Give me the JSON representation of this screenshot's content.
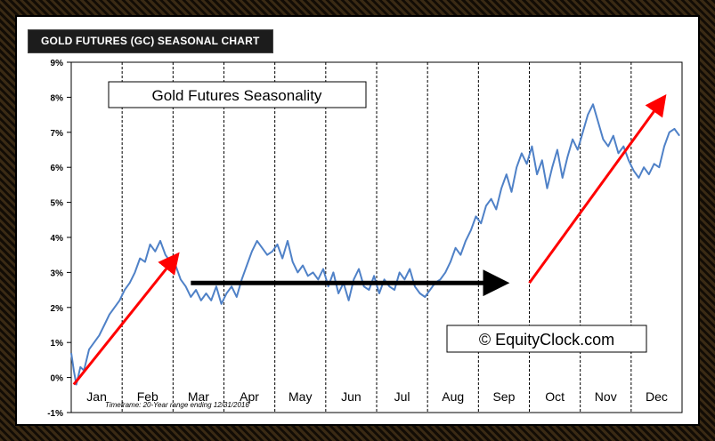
{
  "header": {
    "title": "GOLD FUTURES (GC) SEASONAL CHART"
  },
  "chart_data": {
    "type": "line",
    "title": "Gold Futures Seasonality",
    "watermark": "© EquityClock.com",
    "footnote": "Timeframe:  20-Year range ending 12/31/2016",
    "ylim": [
      -1,
      9
    ],
    "yticks": [
      "-1%",
      "0%",
      "1%",
      "2%",
      "3%",
      "4%",
      "5%",
      "6%",
      "7%",
      "8%",
      "9%"
    ],
    "ytick_values": [
      -1,
      0,
      1,
      2,
      3,
      4,
      5,
      6,
      7,
      8,
      9
    ],
    "categories": [
      "Jan",
      "Feb",
      "Mar",
      "Apr",
      "May",
      "Jun",
      "Jul",
      "Aug",
      "Sep",
      "Oct",
      "Nov",
      "Dec"
    ],
    "grid": "vertical dashed month separators",
    "line_color": "#4f81c7",
    "arrow_colors": {
      "up": "#ff0000",
      "flat": "#000000"
    },
    "series": [
      {
        "x": [
          0,
          0.05,
          0.1,
          0.18,
          0.25,
          0.35,
          0.45,
          0.55,
          0.65,
          0.75,
          0.85,
          0.95,
          1.05,
          1.15,
          1.25,
          1.35,
          1.45,
          1.55,
          1.65,
          1.75,
          1.85,
          1.95,
          2.05,
          2.15,
          2.25,
          2.35,
          2.45,
          2.55,
          2.65,
          2.75,
          2.85,
          2.95,
          3.05,
          3.15,
          3.25,
          3.35,
          3.45,
          3.55,
          3.65,
          3.75,
          3.85,
          3.95,
          4.05,
          4.15,
          4.25,
          4.35,
          4.45,
          4.55,
          4.65,
          4.75,
          4.85,
          4.95,
          5.05,
          5.15,
          5.25,
          5.35,
          5.45,
          5.55,
          5.65,
          5.75,
          5.85,
          5.95,
          6.05,
          6.15,
          6.25,
          6.35,
          6.45,
          6.55,
          6.65,
          6.75,
          6.85,
          6.95,
          7.05,
          7.15,
          7.25,
          7.35,
          7.45,
          7.55,
          7.65,
          7.75,
          7.85,
          7.95,
          8.05,
          8.15,
          8.25,
          8.35,
          8.45,
          8.55,
          8.65,
          8.75,
          8.85,
          8.95,
          9.05,
          9.15,
          9.25,
          9.35,
          9.45,
          9.55,
          9.65,
          9.75,
          9.85,
          9.95,
          10.05,
          10.15,
          10.25,
          10.35,
          10.45,
          10.55,
          10.65,
          10.75,
          10.85,
          10.95,
          11.05,
          11.15,
          11.25,
          11.35,
          11.45,
          11.55,
          11.65,
          11.75,
          11.85,
          11.95
        ],
        "values": [
          0.7,
          0.2,
          -0.2,
          0.3,
          0.2,
          0.8,
          1.0,
          1.2,
          1.5,
          1.8,
          2.0,
          2.2,
          2.5,
          2.7,
          3.0,
          3.4,
          3.3,
          3.8,
          3.6,
          3.9,
          3.5,
          3.3,
          3.2,
          2.8,
          2.6,
          2.3,
          2.5,
          2.2,
          2.4,
          2.2,
          2.6,
          2.1,
          2.4,
          2.6,
          2.3,
          2.8,
          3.2,
          3.6,
          3.9,
          3.7,
          3.5,
          3.6,
          3.8,
          3.4,
          3.9,
          3.3,
          3.0,
          3.2,
          2.9,
          3.0,
          2.8,
          3.1,
          2.6,
          3.0,
          2.4,
          2.7,
          2.2,
          2.8,
          3.1,
          2.6,
          2.5,
          2.9,
          2.4,
          2.8,
          2.6,
          2.5,
          3.0,
          2.8,
          3.1,
          2.6,
          2.4,
          2.3,
          2.5,
          2.7,
          2.8,
          3.0,
          3.3,
          3.7,
          3.5,
          3.9,
          4.2,
          4.6,
          4.4,
          4.9,
          5.1,
          4.8,
          5.4,
          5.8,
          5.3,
          6.0,
          6.4,
          6.1,
          6.6,
          5.8,
          6.2,
          5.4,
          6.0,
          6.5,
          5.7,
          6.3,
          6.8,
          6.5,
          7.0,
          7.5,
          7.8,
          7.3,
          6.8,
          6.6,
          6.9,
          6.4,
          6.6,
          6.2,
          5.9,
          5.7,
          6.0,
          5.8,
          6.1,
          6.0,
          6.6,
          7.0,
          7.1,
          6.9
        ]
      }
    ],
    "arrows": [
      {
        "from": [
          0.05,
          -0.2
        ],
        "to": [
          2.03,
          3.4
        ],
        "color": "up"
      },
      {
        "from": [
          2.35,
          2.7
        ],
        "to": [
          8.35,
          2.7
        ],
        "color": "flat"
      },
      {
        "from": [
          9.0,
          2.7
        ],
        "to": [
          11.6,
          7.9
        ],
        "color": "up"
      }
    ]
  }
}
